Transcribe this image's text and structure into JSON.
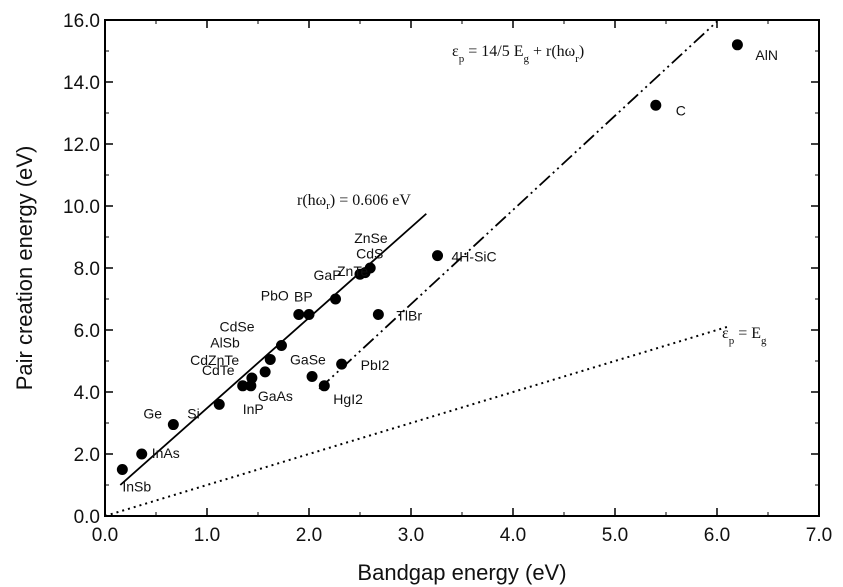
{
  "chart_data": {
    "type": "scatter",
    "xlabel": "Bandgap energy (eV)",
    "ylabel": "Pair creation energy (eV)",
    "xlim": [
      0,
      7
    ],
    "ylim": [
      0,
      16
    ],
    "x_ticks": [
      "0.0",
      "1.0",
      "2.0",
      "3.0",
      "4.0",
      "5.0",
      "6.0",
      "7.0"
    ],
    "y_ticks": [
      "0.0",
      "2.0",
      "4.0",
      "6.0",
      "8.0",
      "10.0",
      "12.0",
      "14.0",
      "16.0"
    ],
    "grid": false,
    "points": [
      {
        "label": "InSb",
        "x": 0.17,
        "y": 1.5
      },
      {
        "label": "InAs",
        "x": 0.36,
        "y": 2.0
      },
      {
        "label": "Ge",
        "x": 0.67,
        "y": 2.95
      },
      {
        "label": "Si",
        "x": 1.12,
        "y": 3.6
      },
      {
        "label": "InP",
        "x": 1.35,
        "y": 4.2
      },
      {
        "label": "GaAs",
        "x": 1.43,
        "y": 4.2
      },
      {
        "label": "CdTe",
        "x": 1.44,
        "y": 4.45
      },
      {
        "label": "CdZnTe",
        "x": 1.57,
        "y": 4.65
      },
      {
        "label": "AlSb",
        "x": 1.62,
        "y": 5.05
      },
      {
        "label": "CdSe",
        "x": 1.73,
        "y": 5.5
      },
      {
        "label": "PbO",
        "x": 1.9,
        "y": 6.5
      },
      {
        "label": "BP",
        "x": 2.0,
        "y": 6.5
      },
      {
        "label": "GaP",
        "x": 2.26,
        "y": 7.0
      },
      {
        "label": "HgI2",
        "x": 2.15,
        "y": 4.2
      },
      {
        "label": "GaSe",
        "x": 2.03,
        "y": 4.5
      },
      {
        "label": "PbI2",
        "x": 2.32,
        "y": 4.9
      },
      {
        "label": "TlBr",
        "x": 2.68,
        "y": 6.5
      },
      {
        "label": "ZnTe",
        "x": 2.5,
        "y": 7.8
      },
      {
        "label": "CdS",
        "x": 2.55,
        "y": 7.85
      },
      {
        "label": "ZnSe",
        "x": 2.6,
        "y": 8.0
      },
      {
        "label": "4H-SiC",
        "x": 3.26,
        "y": 8.4
      },
      {
        "label": "C",
        "x": 5.4,
        "y": 13.25
      },
      {
        "label": "AlN",
        "x": 6.2,
        "y": 15.2
      }
    ],
    "lines": [
      {
        "name": "r(hω_r) = 0.606 eV",
        "style": "solid",
        "x": [
          0.15,
          3.15
        ],
        "y": [
          1.0,
          9.75
        ]
      },
      {
        "name": "ε_p = 14/5 E_g + r(hω_r)",
        "style": "dash-dot",
        "x": [
          2.1,
          6.0
        ],
        "y": [
          4.1,
          15.95
        ]
      },
      {
        "name": "ε_p = E_g",
        "style": "dotted",
        "x": [
          0.0,
          6.1
        ],
        "y": [
          0.0,
          6.1
        ]
      }
    ]
  },
  "annotations": {
    "fit_label": "r(hω",
    "fit_sub": "r",
    "fit_rest": ") = 0.606 eV",
    "eq1_eps": "ε",
    "eq1_sub_p": "p",
    "eq1_mid": " = 14/5 E",
    "eq1_sub_g": "g",
    "eq1_tail": " + r(hω",
    "eq1_sub_r": "r",
    "eq1_end": ")",
    "eq2_eps": "ε",
    "eq2_sub_p": "p",
    "eq2_mid": " = E",
    "eq2_sub_g": "g"
  },
  "style": {
    "marker_color": "#000000",
    "line_color": "#000000"
  }
}
